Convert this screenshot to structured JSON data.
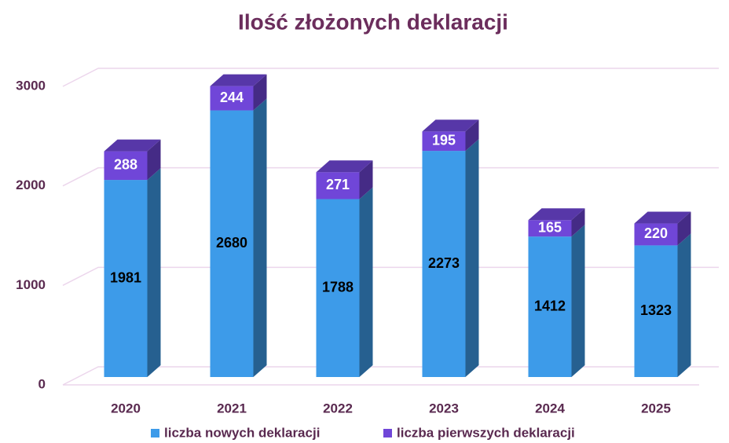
{
  "chart_data": {
    "type": "bar",
    "stacked": true,
    "title": "Ilość złożonych deklaracji",
    "categories": [
      "2020",
      "2021",
      "2022",
      "2023",
      "2024",
      "2025"
    ],
    "series": [
      {
        "name": "liczba nowych deklaracji",
        "color": "#3d9be9",
        "values": [
          1981,
          2680,
          1788,
          2273,
          1412,
          1323
        ]
      },
      {
        "name": "liczba pierwszych deklaracji",
        "color": "#7046d8",
        "values": [
          288,
          244,
          271,
          195,
          165,
          220
        ]
      }
    ],
    "ylim": [
      0,
      3000
    ],
    "yticks": [
      0,
      1000,
      2000,
      3000
    ],
    "grid": true,
    "legend": "bottom"
  }
}
